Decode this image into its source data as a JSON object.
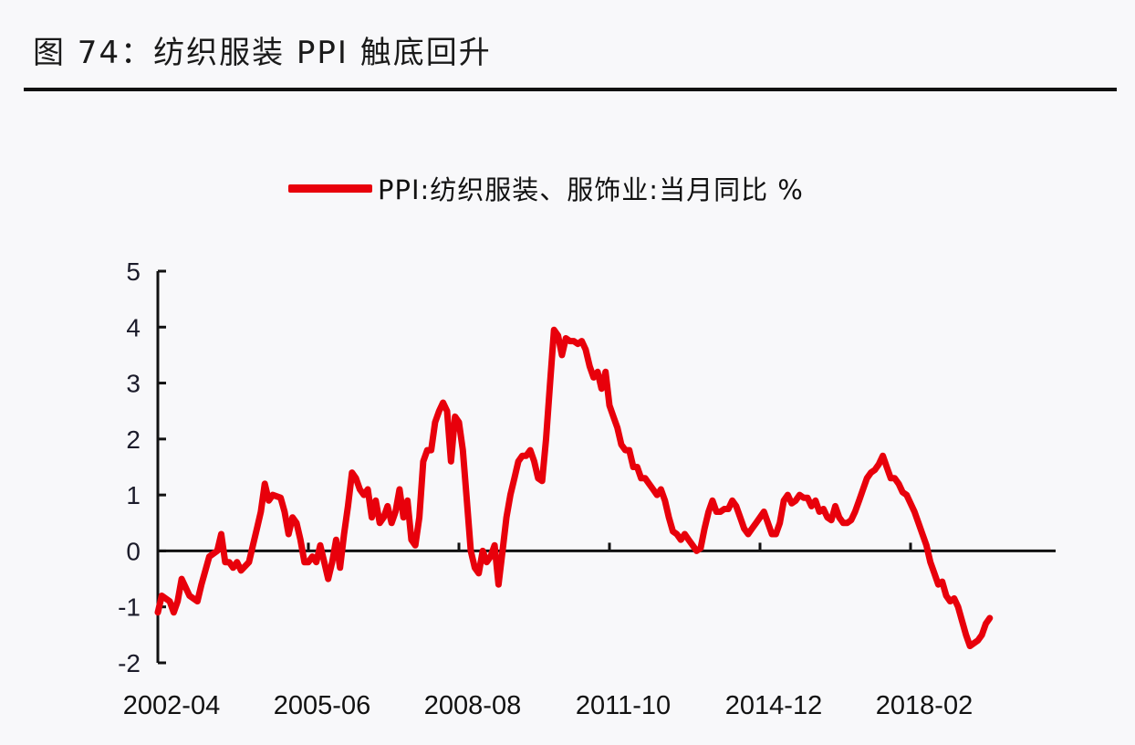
{
  "figure": {
    "title": "图 74：纺织服装 PPI 触底回升"
  },
  "colors": {
    "series": "#e8000b",
    "axis": "#111111",
    "background": "#f8f8fa"
  },
  "chart_data": {
    "type": "line",
    "title": "纺织服装 PPI 触底回升",
    "xlabel": "",
    "ylabel": "",
    "ylim": [
      -2,
      5
    ],
    "yticks": [
      5,
      4,
      3,
      2,
      1,
      0,
      -1,
      -2
    ],
    "xticks": [
      "2002-04",
      "2005-06",
      "2008-08",
      "2011-10",
      "2014-12",
      "2018-02"
    ],
    "legend": {
      "position": "top",
      "entries": [
        "PPI:纺织服装、服饰业:当月同比 %"
      ]
    },
    "grid": false,
    "x_start": "2002-04",
    "x_end": "2021-03",
    "series": [
      {
        "name": "PPI:纺织服装、服饰业:当月同比 %",
        "points": [
          [
            "2002-04",
            -1.1
          ],
          [
            "2002-05",
            -0.8
          ],
          [
            "2002-07",
            -0.9
          ],
          [
            "2002-08",
            -1.1
          ],
          [
            "2002-09",
            -0.9
          ],
          [
            "2002-10",
            -0.5
          ],
          [
            "2002-12",
            -0.8
          ],
          [
            "2003-02",
            -0.9
          ],
          [
            "2003-03",
            -0.6
          ],
          [
            "2003-05",
            -0.1
          ],
          [
            "2003-07",
            -0.0
          ],
          [
            "2003-08",
            0.3
          ],
          [
            "2003-09",
            -0.2
          ],
          [
            "2003-10",
            -0.2
          ],
          [
            "2003-11",
            -0.3
          ],
          [
            "2003-12",
            -0.2
          ],
          [
            "2004-01",
            -0.35
          ],
          [
            "2004-03",
            -0.2
          ],
          [
            "2004-04",
            0.1
          ],
          [
            "2004-05",
            0.4
          ],
          [
            "2004-06",
            0.7
          ],
          [
            "2004-07",
            1.2
          ],
          [
            "2004-08",
            0.9
          ],
          [
            "2004-09",
            1.0
          ],
          [
            "2004-11",
            0.95
          ],
          [
            "2004-12",
            0.7
          ],
          [
            "2005-01",
            0.3
          ],
          [
            "2005-02",
            0.6
          ],
          [
            "2005-03",
            0.5
          ],
          [
            "2005-04",
            0.2
          ],
          [
            "2005-05",
            -0.2
          ],
          [
            "2005-06",
            -0.2
          ],
          [
            "2005-07",
            -0.1
          ],
          [
            "2005-08",
            -0.2
          ],
          [
            "2005-09",
            0.1
          ],
          [
            "2005-10",
            -0.2
          ],
          [
            "2005-11",
            -0.5
          ],
          [
            "2005-12",
            -0.2
          ],
          [
            "2006-01",
            0.2
          ],
          [
            "2006-02",
            -0.3
          ],
          [
            "2006-03",
            0.3
          ],
          [
            "2006-04",
            0.8
          ],
          [
            "2006-05",
            1.4
          ],
          [
            "2006-06",
            1.3
          ],
          [
            "2006-07",
            1.1
          ],
          [
            "2006-08",
            1.0
          ],
          [
            "2006-09",
            1.1
          ],
          [
            "2006-10",
            0.6
          ],
          [
            "2006-11",
            0.9
          ],
          [
            "2006-12",
            0.5
          ],
          [
            "2007-01",
            0.6
          ],
          [
            "2007-02",
            0.8
          ],
          [
            "2007-03",
            0.5
          ],
          [
            "2007-04",
            0.7
          ],
          [
            "2007-05",
            1.1
          ],
          [
            "2007-06",
            0.6
          ],
          [
            "2007-07",
            0.9
          ],
          [
            "2007-08",
            0.2
          ],
          [
            "2007-09",
            0.1
          ],
          [
            "2007-10",
            0.6
          ],
          [
            "2007-11",
            1.6
          ],
          [
            "2007-12",
            1.8
          ],
          [
            "2008-01",
            1.8
          ],
          [
            "2008-02",
            2.3
          ],
          [
            "2008-03",
            2.5
          ],
          [
            "2008-04",
            2.65
          ],
          [
            "2008-05",
            2.5
          ],
          [
            "2008-06",
            1.6
          ],
          [
            "2008-07",
            2.4
          ],
          [
            "2008-08",
            2.3
          ],
          [
            "2008-09",
            1.8
          ],
          [
            "2008-10",
            0.9
          ],
          [
            "2008-11",
            0.0
          ],
          [
            "2008-12",
            -0.3
          ],
          [
            "2009-01",
            -0.4
          ],
          [
            "2009-02",
            0.0
          ],
          [
            "2009-03",
            -0.2
          ],
          [
            "2009-04",
            -0.1
          ],
          [
            "2009-05",
            0.1
          ],
          [
            "2009-06",
            -0.6
          ],
          [
            "2009-07",
            0.0
          ],
          [
            "2009-08",
            0.6
          ],
          [
            "2009-09",
            1.0
          ],
          [
            "2009-10",
            1.3
          ],
          [
            "2009-11",
            1.6
          ],
          [
            "2009-12",
            1.7
          ],
          [
            "2010-01",
            1.7
          ],
          [
            "2010-02",
            1.8
          ],
          [
            "2010-03",
            1.6
          ],
          [
            "2010-04",
            1.3
          ],
          [
            "2010-05",
            1.25
          ],
          [
            "2010-06",
            2.0
          ],
          [
            "2010-07",
            3.0
          ],
          [
            "2010-08",
            3.95
          ],
          [
            "2010-09",
            3.85
          ],
          [
            "2010-10",
            3.5
          ],
          [
            "2010-11",
            3.8
          ],
          [
            "2010-12",
            3.75
          ],
          [
            "2011-01",
            3.75
          ],
          [
            "2011-02",
            3.7
          ],
          [
            "2011-03",
            3.75
          ],
          [
            "2011-04",
            3.6
          ],
          [
            "2011-05",
            3.3
          ],
          [
            "2011-06",
            3.1
          ],
          [
            "2011-07",
            3.2
          ],
          [
            "2011-08",
            2.9
          ],
          [
            "2011-09",
            3.2
          ],
          [
            "2011-10",
            2.6
          ],
          [
            "2011-11",
            2.4
          ],
          [
            "2011-12",
            2.2
          ],
          [
            "2012-01",
            1.9
          ],
          [
            "2012-02",
            1.8
          ],
          [
            "2012-03",
            1.8
          ],
          [
            "2012-04",
            1.5
          ],
          [
            "2012-05",
            1.5
          ],
          [
            "2012-06",
            1.3
          ],
          [
            "2012-07",
            1.3
          ],
          [
            "2012-08",
            1.2
          ],
          [
            "2012-09",
            1.1
          ],
          [
            "2012-10",
            1.0
          ],
          [
            "2012-11",
            1.1
          ],
          [
            "2012-12",
            0.9
          ],
          [
            "2013-01",
            0.6
          ],
          [
            "2013-02",
            0.35
          ],
          [
            "2013-03",
            0.3
          ],
          [
            "2013-04",
            0.2
          ],
          [
            "2013-05",
            0.3
          ],
          [
            "2013-06",
            0.2
          ],
          [
            "2013-07",
            0.1
          ],
          [
            "2013-08",
            0.0
          ],
          [
            "2013-09",
            0.05
          ],
          [
            "2013-10",
            0.4
          ],
          [
            "2013-11",
            0.7
          ],
          [
            "2013-12",
            0.9
          ],
          [
            "2014-01",
            0.7
          ],
          [
            "2014-02",
            0.7
          ],
          [
            "2014-03",
            0.75
          ],
          [
            "2014-04",
            0.75
          ],
          [
            "2014-05",
            0.9
          ],
          [
            "2014-06",
            0.8
          ],
          [
            "2014-07",
            0.6
          ],
          [
            "2014-08",
            0.4
          ],
          [
            "2014-09",
            0.3
          ],
          [
            "2014-10",
            0.4
          ],
          [
            "2014-11",
            0.5
          ],
          [
            "2014-12",
            0.6
          ],
          [
            "2015-01",
            0.7
          ],
          [
            "2015-02",
            0.5
          ],
          [
            "2015-03",
            0.3
          ],
          [
            "2015-04",
            0.3
          ],
          [
            "2015-05",
            0.5
          ],
          [
            "2015-06",
            0.9
          ],
          [
            "2015-07",
            1.0
          ],
          [
            "2015-08",
            0.85
          ],
          [
            "2015-09",
            0.9
          ],
          [
            "2015-10",
            1.0
          ],
          [
            "2015-11",
            0.95
          ],
          [
            "2015-12",
            0.95
          ],
          [
            "2016-01",
            0.8
          ],
          [
            "2016-02",
            0.9
          ],
          [
            "2016-03",
            0.7
          ],
          [
            "2016-04",
            0.75
          ],
          [
            "2016-05",
            0.6
          ],
          [
            "2016-06",
            0.55
          ],
          [
            "2016-07",
            0.8
          ],
          [
            "2016-08",
            0.6
          ],
          [
            "2016-09",
            0.5
          ],
          [
            "2016-10",
            0.5
          ],
          [
            "2016-11",
            0.55
          ],
          [
            "2016-12",
            0.7
          ],
          [
            "2017-01",
            0.9
          ],
          [
            "2017-02",
            1.1
          ],
          [
            "2017-03",
            1.3
          ],
          [
            "2017-04",
            1.4
          ],
          [
            "2017-05",
            1.45
          ],
          [
            "2017-06",
            1.55
          ],
          [
            "2017-07",
            1.7
          ],
          [
            "2017-08",
            1.5
          ],
          [
            "2017-09",
            1.3
          ],
          [
            "2017-10",
            1.3
          ],
          [
            "2017-11",
            1.2
          ],
          [
            "2017-12",
            1.05
          ],
          [
            "2018-01",
            1.0
          ],
          [
            "2018-02",
            0.85
          ],
          [
            "2018-03",
            0.7
          ],
          [
            "2018-04",
            0.5
          ],
          [
            "2018-05",
            0.3
          ],
          [
            "2018-06",
            0.1
          ],
          [
            "2018-07",
            -0.2
          ],
          [
            "2018-08",
            -0.4
          ],
          [
            "2018-09",
            -0.6
          ],
          [
            "2018-10",
            -0.55
          ],
          [
            "2018-11",
            -0.8
          ],
          [
            "2018-12",
            -0.9
          ],
          [
            "2019-01",
            -0.85
          ],
          [
            "2019-02",
            -1.0
          ],
          [
            "2019-03",
            -1.25
          ],
          [
            "2019-04",
            -1.5
          ],
          [
            "2019-05",
            -1.7
          ],
          [
            "2019-06",
            -1.65
          ],
          [
            "2019-07",
            -1.6
          ],
          [
            "2019-08",
            -1.5
          ],
          [
            "2019-09",
            -1.3
          ],
          [
            "2019-10",
            -1.2
          ]
        ]
      }
    ]
  },
  "legend": {
    "label": "PPI:纺织服装、服饰业:当月同比 %"
  }
}
